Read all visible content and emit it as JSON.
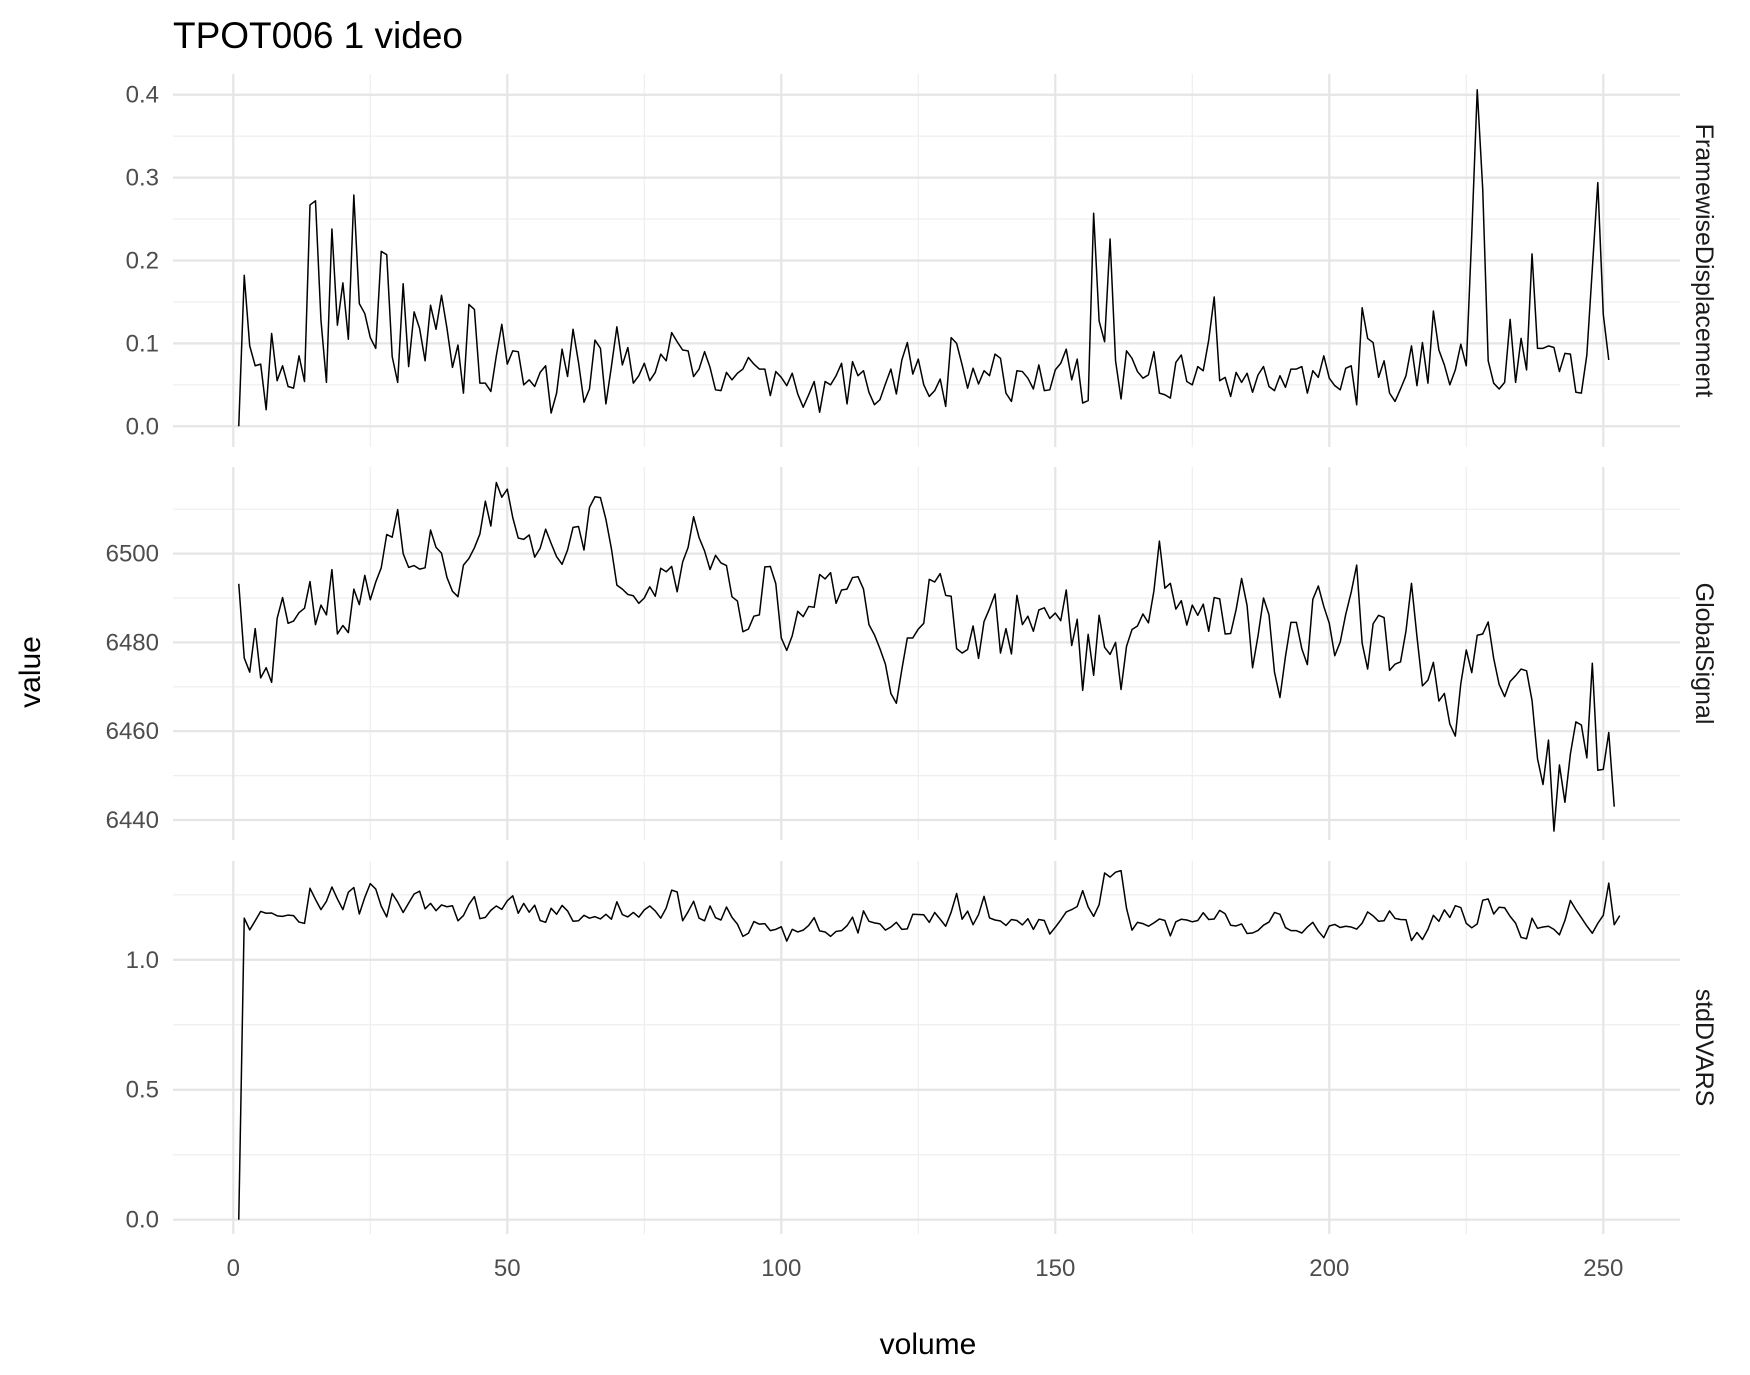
{
  "chart_data": {
    "type": "line",
    "title": "TPOT006  1  video",
    "xlabel": "volume",
    "ylabel": "value",
    "x_ticks": [
      0,
      50,
      100,
      150,
      200,
      250
    ],
    "xlim": [
      -11,
      264
    ],
    "grid": true,
    "legend": "none",
    "line_color": "#000000",
    "facets": [
      {
        "name": "FramewiseDisplacement",
        "ylim": [
          -0.025,
          0.425
        ],
        "y_ticks": [
          0.0,
          0.1,
          0.2,
          0.3,
          0.4
        ],
        "y_tick_labels": [
          "0.0",
          "0.1",
          "0.2",
          "0.3",
          "0.4"
        ],
        "values": [
          0.0,
          0.182,
          0.097,
          0.073,
          0.075,
          0.02,
          0.112,
          0.055,
          0.073,
          0.048,
          0.046,
          0.085,
          0.054,
          0.267,
          0.272,
          0.128,
          0.053,
          0.238,
          0.122,
          0.173,
          0.105,
          0.279,
          0.148,
          0.136,
          0.107,
          0.094,
          0.211,
          0.207,
          0.084,
          0.053,
          0.172,
          0.072,
          0.138,
          0.118,
          0.079,
          0.146,
          0.117,
          0.158,
          0.118,
          0.071,
          0.098,
          0.04,
          0.147,
          0.141,
          0.052,
          0.052,
          0.042,
          0.085,
          0.123,
          0.075,
          0.091,
          0.09,
          0.05,
          0.056,
          0.048,
          0.065,
          0.073,
          0.016,
          0.04,
          0.093,
          0.06,
          0.117,
          0.077,
          0.029,
          0.045,
          0.104,
          0.094,
          0.027,
          0.072,
          0.12,
          0.074,
          0.095,
          0.052,
          0.061,
          0.076,
          0.055,
          0.065,
          0.087,
          0.079,
          0.113,
          0.102,
          0.092,
          0.091,
          0.06,
          0.069,
          0.09,
          0.071,
          0.044,
          0.043,
          0.065,
          0.056,
          0.064,
          0.069,
          0.083,
          0.075,
          0.069,
          0.069,
          0.037,
          0.066,
          0.059,
          0.049,
          0.064,
          0.039,
          0.023,
          0.038,
          0.054,
          0.017,
          0.054,
          0.05,
          0.061,
          0.076,
          0.027,
          0.078,
          0.061,
          0.067,
          0.041,
          0.026,
          0.032,
          0.051,
          0.069,
          0.039,
          0.08,
          0.101,
          0.063,
          0.081,
          0.05,
          0.036,
          0.043,
          0.057,
          0.024,
          0.107,
          0.1,
          0.074,
          0.046,
          0.07,
          0.051,
          0.067,
          0.061,
          0.087,
          0.082,
          0.04,
          0.03,
          0.067,
          0.066,
          0.058,
          0.045,
          0.074,
          0.043,
          0.044,
          0.068,
          0.076,
          0.093,
          0.056,
          0.081,
          0.028,
          0.031,
          0.257,
          0.127,
          0.102,
          0.226,
          0.079,
          0.033,
          0.091,
          0.082,
          0.066,
          0.058,
          0.062,
          0.09,
          0.04,
          0.038,
          0.034,
          0.077,
          0.086,
          0.054,
          0.05,
          0.072,
          0.067,
          0.104,
          0.156,
          0.055,
          0.059,
          0.036,
          0.065,
          0.053,
          0.064,
          0.041,
          0.062,
          0.072,
          0.048,
          0.043,
          0.061,
          0.047,
          0.069,
          0.069,
          0.072,
          0.04,
          0.067,
          0.059,
          0.085,
          0.058,
          0.049,
          0.044,
          0.07,
          0.073,
          0.026,
          0.143,
          0.106,
          0.101,
          0.059,
          0.079,
          0.04,
          0.03,
          0.045,
          0.061,
          0.097,
          0.049,
          0.101,
          0.052,
          0.139,
          0.092,
          0.074,
          0.05,
          0.068,
          0.099,
          0.073,
          0.231,
          0.406,
          0.286,
          0.079,
          0.052,
          0.045,
          0.053,
          0.129,
          0.053,
          0.106,
          0.068,
          0.208,
          0.094,
          0.094,
          0.097,
          0.095,
          0.066,
          0.088,
          0.087,
          0.041,
          0.04,
          0.086,
          0.19,
          0.294,
          0.135,
          0.08
        ]
      },
      {
        "name": "GlobalSignal",
        "ylim": [
          6435.5,
          6519.5
        ],
        "y_ticks": [
          6440,
          6460,
          6480,
          6500
        ],
        "y_tick_labels": [
          "6440",
          "6460",
          "6480",
          "6500"
        ],
        "values": [
          6493.2,
          6476.5,
          6473.3,
          6483.1,
          6472.0,
          6474.3,
          6471.0,
          6485.4,
          6490.1,
          6484.3,
          6484.8,
          6486.7,
          6487.7,
          6493.7,
          6484.0,
          6488.4,
          6486.2,
          6496.4,
          6481.9,
          6483.8,
          6482.2,
          6492.0,
          6488.5,
          6495.1,
          6489.6,
          6493.6,
          6496.8,
          6504.3,
          6503.7,
          6509.9,
          6500.0,
          6496.9,
          6497.3,
          6496.5,
          6496.8,
          6505.3,
          6501.4,
          6500.1,
          6494.6,
          6491.5,
          6490.3,
          6497.4,
          6498.9,
          6501.3,
          6504.4,
          6511.8,
          6506.2,
          6516.0,
          6512.7,
          6514.5,
          6508.1,
          6503.5,
          6503.2,
          6504.2,
          6499.2,
          6501.2,
          6505.5,
          6502.3,
          6499.3,
          6497.6,
          6500.8,
          6505.9,
          6506.1,
          6500.8,
          6510.4,
          6512.8,
          6512.6,
          6507.7,
          6501.1,
          6492.9,
          6492.0,
          6490.8,
          6490.5,
          6488.8,
          6490.0,
          6492.5,
          6490.4,
          6496.7,
          6495.9,
          6497.1,
          6491.4,
          6498.1,
          6501.4,
          6508.3,
          6503.6,
          6500.6,
          6496.4,
          6499.6,
          6497.9,
          6497.3,
          6490.3,
          6489.3,
          6482.4,
          6483.0,
          6485.9,
          6486.2,
          6497.0,
          6497.1,
          6493.2,
          6481.0,
          6478.2,
          6481.5,
          6487.0,
          6485.8,
          6488.1,
          6487.9,
          6495.3,
          6494.3,
          6495.7,
          6488.8,
          6491.8,
          6492.0,
          6494.6,
          6494.8,
          6492.0,
          6484.0,
          6481.7,
          6478.6,
          6475.1,
          6468.5,
          6466.3,
          6473.9,
          6481.0,
          6481.0,
          6483.0,
          6484.3,
          6494.2,
          6493.6,
          6495.5,
          6490.6,
          6490.4,
          6478.6,
          6477.6,
          6478.4,
          6483.7,
          6476.4,
          6484.7,
          6487.6,
          6490.9,
          6477.6,
          6483.1,
          6477.4,
          6490.6,
          6484.0,
          6485.9,
          6482.5,
          6487.3,
          6487.8,
          6485.4,
          6486.6,
          6484.9,
          6491.8,
          6479.3,
          6485.2,
          6469.2,
          6481.8,
          6472.6,
          6486.1,
          6478.9,
          6477.3,
          6480.0,
          6469.4,
          6479.1,
          6482.9,
          6483.7,
          6486.4,
          6484.4,
          6491.6,
          6502.8,
          6492.2,
          6493.3,
          6487.5,
          6489.4,
          6483.9,
          6488.4,
          6486.1,
          6488.6,
          6482.5,
          6490.1,
          6489.8,
          6481.9,
          6482.0,
          6487.4,
          6494.4,
          6488.3,
          6474.3,
          6481.5,
          6490.0,
          6486.2,
          6473.3,
          6467.6,
          6476.8,
          6484.5,
          6484.5,
          6478.5,
          6475.0,
          6489.7,
          6492.7,
          6488.1,
          6484.3,
          6477.0,
          6480.1,
          6486.3,
          6491.3,
          6497.4,
          6479.8,
          6474.0,
          6484.2,
          6486.1,
          6485.6,
          6473.7,
          6475.1,
          6475.6,
          6482.6,
          6493.3,
          6481.3,
          6470.2,
          6471.5,
          6475.5,
          6466.8,
          6468.5,
          6461.6,
          6458.9,
          6470.7,
          6478.3,
          6473.2,
          6481.6,
          6481.9,
          6484.6,
          6476.4,
          6470.5,
          6467.8,
          6471.2,
          6472.5,
          6474.0,
          6473.6,
          6466.9,
          6453.8,
          6448.0,
          6458.0,
          6437.5,
          6452.4,
          6444.0,
          6454.9,
          6462.1,
          6461.4,
          6454.0,
          6475.3,
          6451.2,
          6451.4,
          6459.7,
          6443.0
        ]
      },
      {
        "name": "stdDVARS",
        "ylim": [
          -0.055,
          1.38
        ],
        "y_ticks": [
          0.0,
          0.5,
          1.0
        ],
        "y_tick_labels": [
          "0.0",
          "0.5",
          "1.0"
        ],
        "values": [
          0.0,
          1.16,
          1.115,
          1.15,
          1.186,
          1.179,
          1.18,
          1.169,
          1.167,
          1.172,
          1.17,
          1.145,
          1.14,
          1.275,
          1.232,
          1.193,
          1.225,
          1.28,
          1.234,
          1.193,
          1.26,
          1.278,
          1.176,
          1.24,
          1.293,
          1.272,
          1.206,
          1.165,
          1.255,
          1.222,
          1.182,
          1.218,
          1.253,
          1.264,
          1.196,
          1.217,
          1.189,
          1.211,
          1.204,
          1.208,
          1.15,
          1.17,
          1.213,
          1.243,
          1.158,
          1.163,
          1.19,
          1.207,
          1.194,
          1.227,
          1.246,
          1.179,
          1.217,
          1.183,
          1.21,
          1.151,
          1.144,
          1.198,
          1.175,
          1.209,
          1.188,
          1.148,
          1.15,
          1.171,
          1.16,
          1.166,
          1.157,
          1.175,
          1.156,
          1.223,
          1.174,
          1.165,
          1.182,
          1.164,
          1.192,
          1.207,
          1.188,
          1.16,
          1.199,
          1.268,
          1.261,
          1.15,
          1.185,
          1.225,
          1.16,
          1.15,
          1.207,
          1.162,
          1.153,
          1.203,
          1.163,
          1.137,
          1.09,
          1.102,
          1.147,
          1.137,
          1.139,
          1.112,
          1.117,
          1.127,
          1.072,
          1.117,
          1.107,
          1.114,
          1.132,
          1.162,
          1.111,
          1.107,
          1.09,
          1.109,
          1.112,
          1.131,
          1.164,
          1.103,
          1.188,
          1.148,
          1.142,
          1.138,
          1.114,
          1.126,
          1.144,
          1.117,
          1.119,
          1.175,
          1.174,
          1.173,
          1.144,
          1.182,
          1.156,
          1.129,
          1.183,
          1.255,
          1.156,
          1.187,
          1.135,
          1.174,
          1.244,
          1.161,
          1.153,
          1.149,
          1.132,
          1.155,
          1.151,
          1.134,
          1.158,
          1.117,
          1.155,
          1.151,
          1.099,
          1.125,
          1.153,
          1.184,
          1.193,
          1.205,
          1.266,
          1.203,
          1.167,
          1.212,
          1.334,
          1.318,
          1.337,
          1.343,
          1.198,
          1.114,
          1.144,
          1.139,
          1.129,
          1.142,
          1.157,
          1.151,
          1.092,
          1.146,
          1.156,
          1.153,
          1.146,
          1.151,
          1.181,
          1.155,
          1.157,
          1.19,
          1.177,
          1.133,
          1.13,
          1.138,
          1.101,
          1.103,
          1.113,
          1.133,
          1.145,
          1.182,
          1.175,
          1.124,
          1.112,
          1.112,
          1.103,
          1.126,
          1.144,
          1.11,
          1.085,
          1.13,
          1.136,
          1.124,
          1.129,
          1.126,
          1.118,
          1.141,
          1.184,
          1.169,
          1.148,
          1.15,
          1.188,
          1.159,
          1.155,
          1.154,
          1.074,
          1.105,
          1.078,
          1.117,
          1.171,
          1.148,
          1.192,
          1.163,
          1.208,
          1.201,
          1.14,
          1.123,
          1.138,
          1.229,
          1.234,
          1.176,
          1.202,
          1.2,
          1.167,
          1.141,
          1.086,
          1.081,
          1.16,
          1.121,
          1.126,
          1.129,
          1.117,
          1.096,
          1.151,
          1.228,
          1.193,
          1.162,
          1.13,
          1.102,
          1.14,
          1.171,
          1.295,
          1.135,
          1.17
        ]
      }
    ]
  }
}
